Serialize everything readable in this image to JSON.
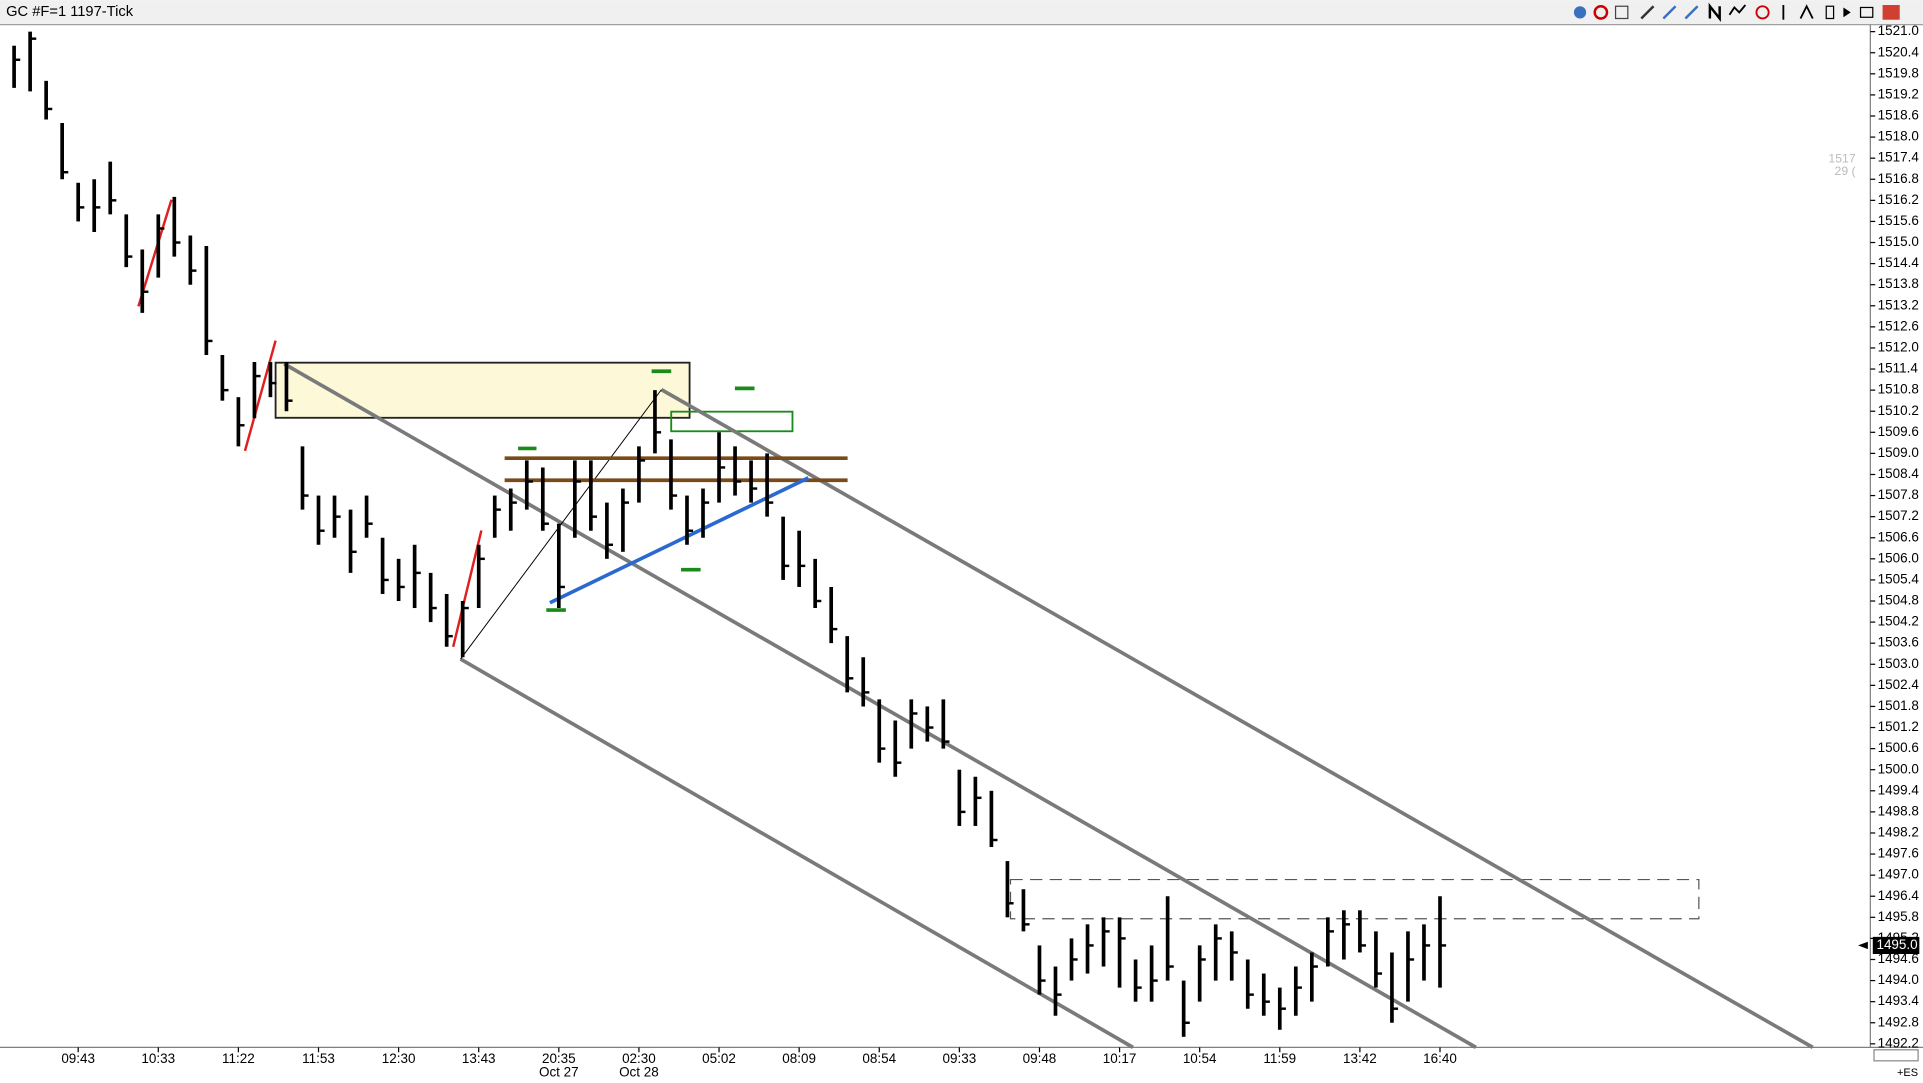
{
  "chart_data": {
    "type": "hlc",
    "title": "GC #F=1 1197-Tick",
    "color": "#000000",
    "ylim": [
      1492.1,
      1521.2
    ],
    "yticks": [
      1492.2,
      1492.8,
      1493.4,
      {
        "value": 1494,
        "label": "1494.0"
      },
      1494.6,
      1495.2,
      1495.8,
      1496.4,
      {
        "value": 1497,
        "label": "1497.0"
      },
      1497.6,
      1498.2,
      1498.8,
      1499.4,
      {
        "value": 1500,
        "label": "1500.0"
      },
      1500.6,
      1501.2,
      1501.8,
      1502.4,
      {
        "value": 1503,
        "label": "1503.0"
      },
      1503.6,
      1504.2,
      1504.8,
      1505.4,
      {
        "value": 1506,
        "label": "1506.0"
      },
      1506.6,
      1507.2,
      1507.8,
      1508.4,
      {
        "value": 1509,
        "label": "1509.0"
      },
      1509.6,
      1510.2,
      1510.8,
      1511.4,
      {
        "value": 1512,
        "label": "1512.0"
      },
      1512.6,
      1513.2,
      1513.8,
      1514.4,
      {
        "value": 1515,
        "label": "1515.0"
      },
      1515.6,
      1516.2,
      1516.8,
      1517.4,
      {
        "value": 1518,
        "label": "1518.0"
      },
      1518.6,
      1519.2,
      1519.8,
      1520.4,
      {
        "value": 1521,
        "label": "1521.0"
      }
    ],
    "xlim": [
      -0.88,
      115.86
    ],
    "xticks": [
      {
        "value": 4,
        "label": "09:43"
      },
      {
        "value": 9,
        "label": "10:33"
      },
      {
        "value": 14,
        "label": "11:22"
      },
      {
        "value": 19,
        "label": "11:53"
      },
      {
        "value": 24,
        "label": "12:30"
      },
      {
        "value": 29,
        "label": "13:43"
      },
      {
        "value": 34,
        "label": "20:35"
      },
      {
        "value": 39,
        "label": "02:30"
      },
      {
        "value": 44,
        "label": "05:02"
      },
      {
        "value": 49,
        "label": "08:09"
      },
      {
        "value": 54,
        "label": "08:54"
      },
      {
        "value": 59,
        "label": "09:33"
      },
      {
        "value": 64,
        "label": "09:48"
      },
      {
        "value": 69,
        "label": "10:17"
      },
      {
        "value": 74,
        "label": "10:54"
      },
      {
        "value": 79,
        "label": "11:59"
      },
      {
        "value": 84,
        "label": "13:42"
      },
      {
        "value": 89,
        "label": "16:40"
      }
    ],
    "date_labels": [
      {
        "value": 34,
        "label": "Oct 27"
      },
      {
        "value": 39,
        "label": "Oct 28"
      }
    ],
    "high": [
      1520.6,
      1521.0,
      1519.6,
      1518.4,
      1516.7,
      1516.8,
      1517.3,
      1515.8,
      1514.8,
      1515.8,
      1516.3,
      1515.2,
      1514.9,
      1511.8,
      1510.6,
      1511.6,
      1511.6,
      1511.6,
      1509.2,
      1507.8,
      1507.8,
      1507.4,
      1507.8,
      1506.6,
      1506.0,
      1506.4,
      1505.6,
      1505.0,
      1504.8,
      1506.4,
      1507.8,
      1508.0,
      1508.8,
      1508.6,
      1507.0,
      1508.8,
      1508.8,
      1507.6,
      1508.0,
      1509.2,
      1510.8,
      1509.4,
      1507.8,
      1508.0,
      1509.6,
      1509.2,
      1508.8,
      1509.0,
      1507.2,
      1506.8,
      1506.0,
      1505.2,
      1503.8,
      1503.2,
      1502.0,
      1501.4,
      1502.0,
      1501.8,
      1502.0,
      1500.0,
      1499.8,
      1499.4,
      1497.4,
      1496.6,
      1495.0,
      1494.4,
      1495.2,
      1495.6,
      1495.8,
      1495.8,
      1494.6,
      1495.0,
      1496.4,
      1494.0,
      1495.0,
      1495.6,
      1495.4,
      1494.6,
      1494.2,
      1493.8,
      1494.4,
      1494.8,
      1495.8,
      1496.0,
      1496.0,
      1495.4,
      1494.8,
      1495.4,
      1495.6,
      1496.4
    ],
    "low": [
      1519.4,
      1519.3,
      1518.5,
      1516.8,
      1515.6,
      1515.3,
      1515.8,
      1514.3,
      1513.0,
      1514.0,
      1514.6,
      1513.8,
      1511.8,
      1510.5,
      1509.2,
      1510.0,
      1510.6,
      1510.2,
      1507.4,
      1506.4,
      1506.6,
      1505.6,
      1506.6,
      1505.0,
      1504.8,
      1504.6,
      1504.2,
      1503.5,
      1503.2,
      1504.6,
      1506.6,
      1506.8,
      1507.4,
      1506.8,
      1504.6,
      1506.6,
      1506.8,
      1506.0,
      1506.2,
      1507.6,
      1509.0,
      1507.4,
      1506.4,
      1506.6,
      1507.6,
      1507.8,
      1507.6,
      1507.2,
      1505.4,
      1505.2,
      1504.6,
      1503.6,
      1502.2,
      1501.8,
      1500.2,
      1499.8,
      1500.6,
      1500.8,
      1500.6,
      1498.4,
      1498.4,
      1497.8,
      1495.8,
      1495.4,
      1493.6,
      1493.0,
      1494.0,
      1494.2,
      1494.4,
      1493.8,
      1493.4,
      1493.4,
      1494.0,
      1492.4,
      1493.4,
      1494.0,
      1494.0,
      1493.2,
      1493.0,
      1492.6,
      1493.0,
      1493.4,
      1494.4,
      1494.6,
      1494.8,
      1493.8,
      1492.8,
      1493.4,
      1494.0,
      1493.8
    ],
    "close": [
      1520.2,
      1520.8,
      1518.8,
      1517.0,
      1516.0,
      1516.0,
      1516.2,
      1514.6,
      1513.6,
      1515.4,
      1515.0,
      1514.2,
      1512.2,
      1510.8,
      1509.8,
      1511.2,
      1511.0,
      1510.5,
      1507.8,
      1506.8,
      1507.2,
      1506.2,
      1507.0,
      1505.4,
      1505.2,
      1505.6,
      1504.6,
      1503.8,
      1504.6,
      1506.0,
      1507.4,
      1507.6,
      1508.2,
      1507.0,
      1505.2,
      1508.2,
      1507.2,
      1506.4,
      1507.6,
      1508.8,
      1509.6,
      1507.8,
      1506.8,
      1507.6,
      1508.6,
      1508.2,
      1508.0,
      1507.6,
      1505.8,
      1505.8,
      1504.8,
      1504.0,
      1502.6,
      1502.2,
      1500.6,
      1500.2,
      1501.6,
      1501.2,
      1500.8,
      1498.8,
      1499.2,
      1498.0,
      1496.2,
      1495.6,
      1494.0,
      1493.6,
      1494.6,
      1495.0,
      1495.4,
      1495.2,
      1493.8,
      1494.0,
      1494.4,
      1492.8,
      1494.6,
      1495.2,
      1494.8,
      1493.6,
      1493.4,
      1493.2,
      1493.8,
      1494.4,
      1495.4,
      1495.6,
      1495.0,
      1494.2,
      1493.2,
      1494.6,
      1495.0,
      1495.0
    ],
    "last_price": {
      "value": 1495,
      "label": "1495.0"
    },
    "overlay_text": [
      "1517",
      "29 ("
    ],
    "corner_text": "+ES"
  }
}
